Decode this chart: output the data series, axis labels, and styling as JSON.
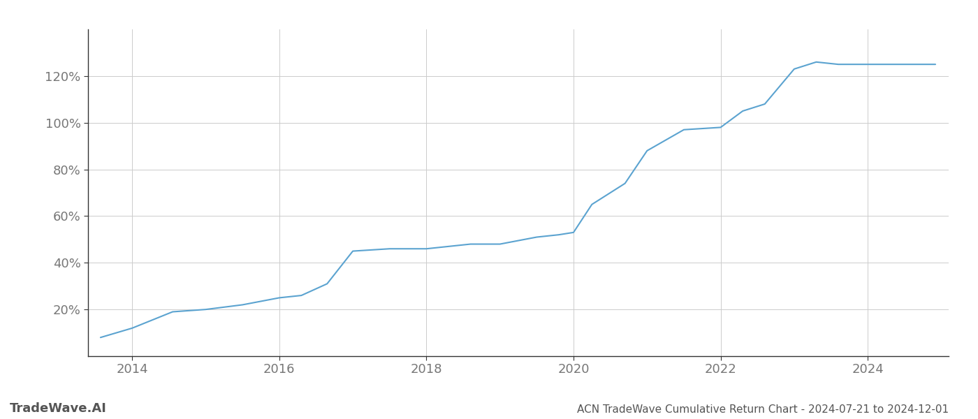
{
  "title": "ACN TradeWave Cumulative Return Chart - 2024-07-21 to 2024-12-01",
  "watermark": "TradeWave.AI",
  "line_color": "#5ba3d0",
  "background_color": "#ffffff",
  "grid_color": "#cccccc",
  "x_years": [
    2013.57,
    2014.0,
    2014.55,
    2015.0,
    2015.5,
    2016.0,
    2016.3,
    2016.65,
    2017.0,
    2017.5,
    2018.0,
    2018.3,
    2018.6,
    2019.0,
    2019.5,
    2019.8,
    2020.0,
    2020.25,
    2020.5,
    2020.7,
    2021.0,
    2021.5,
    2022.0,
    2022.3,
    2022.6,
    2023.0,
    2023.3,
    2023.6,
    2024.0,
    2024.5,
    2024.92
  ],
  "y_values": [
    8,
    12,
    19,
    20,
    22,
    25,
    26,
    31,
    45,
    46,
    46,
    47,
    48,
    48,
    51,
    52,
    53,
    65,
    70,
    74,
    88,
    97,
    98,
    105,
    108,
    123,
    126,
    125,
    125,
    125,
    125
  ],
  "xlim": [
    2013.4,
    2025.1
  ],
  "ylim": [
    0,
    140
  ],
  "yticks": [
    20,
    40,
    60,
    80,
    100,
    120
  ],
  "ytick_labels": [
    "20%",
    "40%",
    "60%",
    "80%",
    "100%",
    "120%"
  ],
  "xticks": [
    2014,
    2016,
    2018,
    2020,
    2022,
    2024
  ],
  "xtick_labels": [
    "2014",
    "2016",
    "2018",
    "2020",
    "2022",
    "2024"
  ],
  "line_width": 1.5,
  "title_fontsize": 11,
  "tick_fontsize": 13,
  "watermark_fontsize": 13,
  "title_color": "#555555",
  "tick_color": "#777777",
  "watermark_color": "#555555",
  "spine_color": "#333333"
}
